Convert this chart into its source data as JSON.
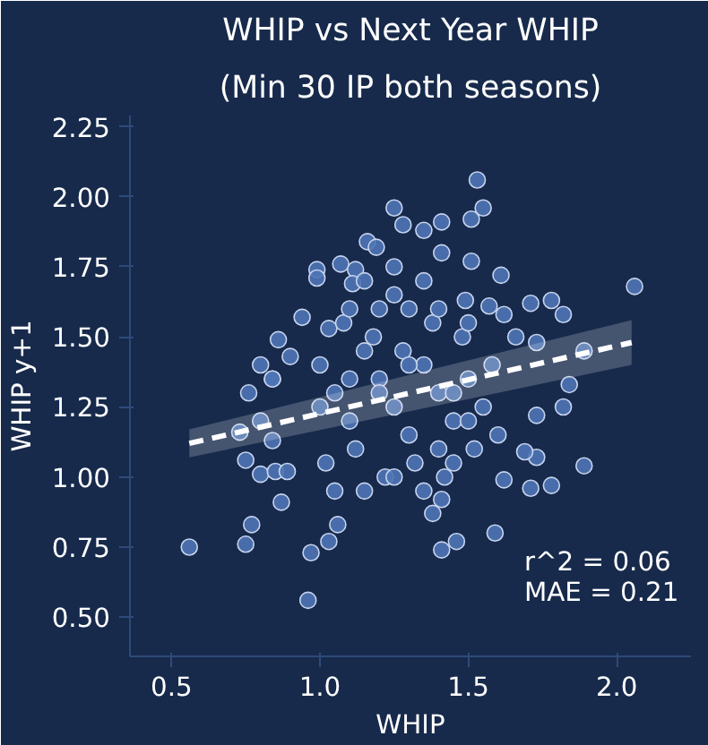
{
  "chart_data": {
    "type": "scatter",
    "title": "WHIP vs Next Year WHIP",
    "subtitle": "(Min 30 IP both seasons)",
    "xlabel": "WHIP",
    "ylabel": "WHIP y+1",
    "xlim": [
      0.36,
      2.25
    ],
    "ylim": [
      0.36,
      2.29
    ],
    "xticks": [
      {
        "value": 0.5,
        "label": "0.5"
      },
      {
        "value": 1.0,
        "label": "1.0"
      },
      {
        "value": 1.5,
        "label": "1.5"
      },
      {
        "value": 2.0,
        "label": "2.0"
      }
    ],
    "yticks": [
      {
        "value": 0.5,
        "label": "0.50"
      },
      {
        "value": 0.75,
        "label": "0.75"
      },
      {
        "value": 1.0,
        "label": "1.00"
      },
      {
        "value": 1.25,
        "label": "1.25"
      },
      {
        "value": 1.5,
        "label": "1.50"
      },
      {
        "value": 1.75,
        "label": "1.75"
      },
      {
        "value": 2.0,
        "label": "2.00"
      },
      {
        "value": 2.25,
        "label": "2.25"
      }
    ],
    "grid": false,
    "series": [
      {
        "marker": "circle",
        "color": "#4e74b5",
        "x": [
          0.56,
          0.75,
          0.77,
          0.96,
          0.97,
          1.03,
          1.06,
          0.87,
          0.75,
          0.76,
          0.8,
          0.84,
          0.84,
          0.8,
          0.85,
          0.89,
          0.73,
          1.25,
          1.16,
          1.19,
          1.28,
          1.07,
          1.12,
          0.99,
          0.99,
          1.11,
          1.25,
          0.94,
          0.86,
          0.8,
          0.84,
          0.9,
          1.03,
          1.53,
          1.55,
          1.51,
          1.41,
          1.35,
          1.41,
          1.51,
          1.61,
          1.49,
          1.71,
          1.78,
          1.82,
          2.06,
          1.57,
          1.62,
          1.66,
          1.73,
          1.89,
          1.84,
          1.82,
          1.73,
          1.73,
          1.89,
          1.71,
          1.78,
          1.59,
          1.46,
          1.41,
          1.62,
          1.69,
          1.38,
          1.41,
          1.0,
          1.05,
          1.1,
          1.15,
          1.2,
          1.25,
          1.3,
          1.35,
          1.4,
          1.45,
          1.5,
          1.55,
          1.6,
          1.02,
          1.08,
          1.12,
          1.18,
          1.22,
          1.28,
          1.32,
          1.38,
          1.42,
          1.48,
          1.52,
          1.58,
          1.05,
          1.1,
          1.15,
          1.2,
          1.25,
          1.3,
          1.35,
          1.4,
          1.45,
          1.5,
          1.0,
          1.1,
          1.2,
          1.3,
          1.4,
          1.5,
          1.15,
          1.25,
          1.35,
          1.45
        ],
        "values": [
          0.75,
          0.76,
          0.83,
          0.56,
          0.73,
          0.77,
          0.83,
          0.91,
          1.06,
          1.3,
          1.2,
          1.35,
          1.13,
          1.01,
          1.02,
          1.02,
          1.16,
          1.96,
          1.84,
          1.82,
          1.9,
          1.76,
          1.74,
          1.74,
          1.71,
          1.69,
          1.75,
          1.57,
          1.49,
          1.4,
          1.35,
          1.43,
          1.53,
          2.06,
          1.96,
          1.92,
          1.91,
          1.88,
          1.8,
          1.77,
          1.72,
          1.63,
          1.62,
          1.63,
          1.58,
          1.68,
          1.61,
          1.58,
          1.5,
          1.48,
          1.45,
          1.33,
          1.25,
          1.22,
          1.07,
          1.04,
          0.96,
          0.97,
          0.8,
          0.77,
          0.74,
          0.99,
          1.09,
          0.87,
          0.92,
          1.4,
          1.3,
          1.2,
          1.45,
          1.35,
          1.25,
          1.15,
          1.4,
          1.3,
          1.2,
          1.35,
          1.25,
          1.15,
          1.05,
          1.55,
          1.1,
          1.5,
          1.0,
          1.45,
          1.05,
          1.55,
          1.0,
          1.5,
          1.1,
          1.4,
          0.95,
          1.6,
          0.95,
          1.6,
          1.0,
          1.6,
          0.95,
          1.6,
          1.05,
          1.55,
          1.25,
          1.35,
          1.3,
          1.4,
          1.1,
          1.2,
          1.7,
          1.65,
          1.7,
          1.3
        ]
      },
      {
        "type": "line",
        "color": "#ffffff",
        "line_style": "dashed",
        "x": [
          0.56,
          2.05
        ],
        "values": [
          1.12,
          1.48
        ],
        "lower": [
          1.07,
          1.4
        ],
        "upper": [
          1.17,
          1.56
        ]
      }
    ],
    "annotations": [
      "r^2 = 0.06",
      "MAE = 0.21"
    ]
  }
}
